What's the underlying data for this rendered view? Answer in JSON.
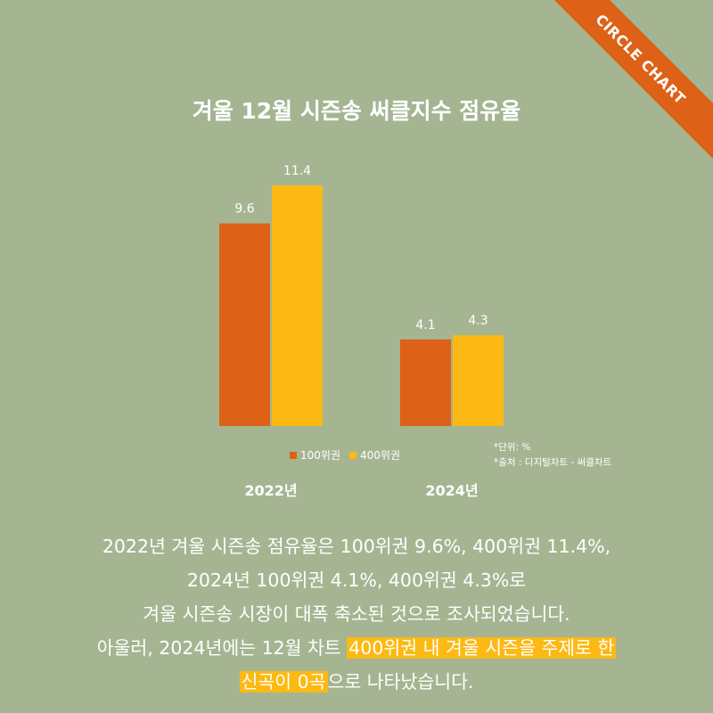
{
  "ribbon_text": "CIRCLE CHART",
  "chart_data": {
    "type": "bar",
    "title": "겨울 12월 시즌송 써클지수 점유율",
    "categories": [
      "2022년",
      "2024년"
    ],
    "series": [
      {
        "name": "100위권",
        "color": "#dd6116",
        "values": [
          9.6,
          4.1
        ]
      },
      {
        "name": "400위권",
        "color": "#fdb913",
        "values": [
          11.4,
          4.3
        ]
      }
    ],
    "data_labels": [
      [
        "9.6",
        "4.1"
      ],
      [
        "11.4",
        "4.3"
      ]
    ],
    "ylim": [
      0,
      11.4
    ],
    "grid": false,
    "legend_position": "bottom"
  },
  "notes": {
    "unit": "*단위: %",
    "source": "*출처 : 디지털차트 - 써클차트"
  },
  "body": {
    "line1": "2022년 겨울 시즌송 점유율은 100위권 9.6%, 400위권 11.4%,",
    "line2": "2024년 100위권 4.1%, 400위권 4.3%로",
    "line3": "겨울 시즌송 시장이 대폭 축소된 것으로 조사되었습니다.",
    "line4_pre": "아울러, 2024년에는 12월 차트 ",
    "line4_hl": "400위권 내 겨울 시즌을 주제로 한",
    "line5_hl": "신곡이 0곡",
    "line5_post": "으로 나타났습니다."
  }
}
